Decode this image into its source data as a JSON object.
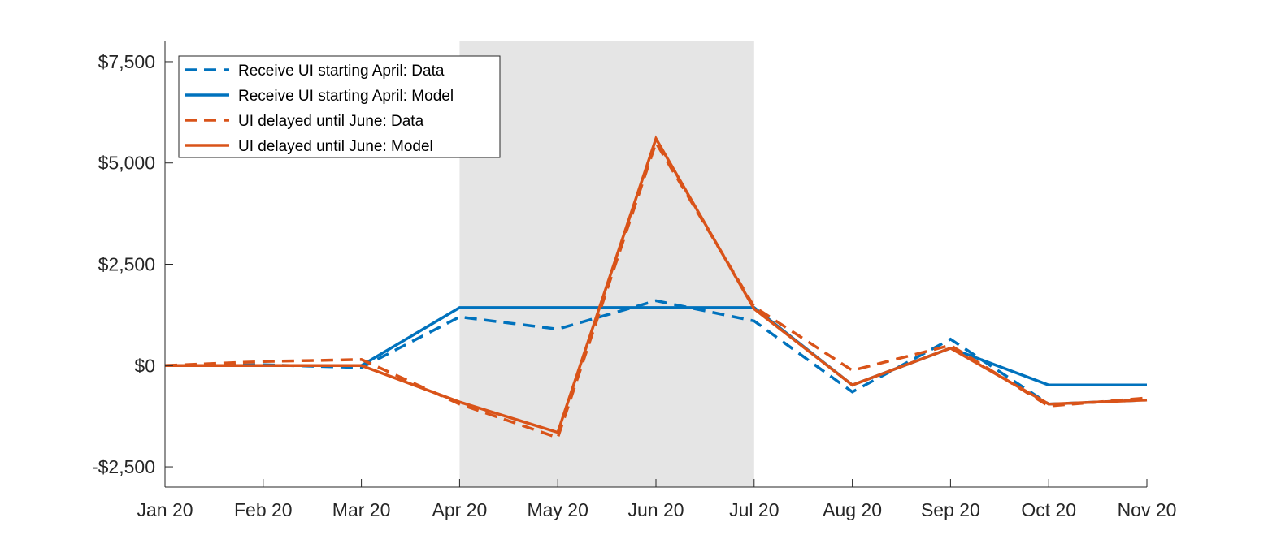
{
  "chart_data": {
    "type": "line",
    "title": "",
    "xlabel": "",
    "ylabel": "",
    "categories": [
      "Jan 20",
      "Feb 20",
      "Mar 20",
      "Apr 20",
      "May 20",
      "Jun 20",
      "Jul 20",
      "Aug 20",
      "Sep 20",
      "Oct 20",
      "Nov 20"
    ],
    "ylim": [
      -3000,
      8000
    ],
    "yticks": [
      -2500,
      0,
      2500,
      5000,
      7500
    ],
    "ytick_labels": [
      "-$2,500",
      "$0",
      "$2,500",
      "$5,000",
      "$7,500"
    ],
    "shaded_region": {
      "from": "Apr 20",
      "to": "Jul 20",
      "color": "#e5e5e5"
    },
    "legend_position": "top-left",
    "grid": false,
    "series": [
      {
        "name": "Receive UI starting April: Data",
        "style": "dashed",
        "color": "#0072bd",
        "values": [
          0,
          20,
          -50,
          1200,
          900,
          1600,
          1100,
          -650,
          650,
          -950,
          -850
        ]
      },
      {
        "name": "Receive UI starting April: Model",
        "style": "solid",
        "color": "#0072bd",
        "values": [
          0,
          0,
          0,
          1430,
          1430,
          1430,
          1430,
          -480,
          430,
          -480,
          -480
        ]
      },
      {
        "name": "UI delayed until June: Data",
        "style": "dashed",
        "color": "#d95319",
        "values": [
          0,
          100,
          150,
          -950,
          -1780,
          5500,
          1450,
          -120,
          500,
          -1000,
          -800
        ]
      },
      {
        "name": "UI delayed until June: Model",
        "style": "solid",
        "color": "#d95319",
        "values": [
          0,
          0,
          0,
          -900,
          -1650,
          5600,
          1400,
          -480,
          430,
          -950,
          -850
        ]
      }
    ]
  }
}
